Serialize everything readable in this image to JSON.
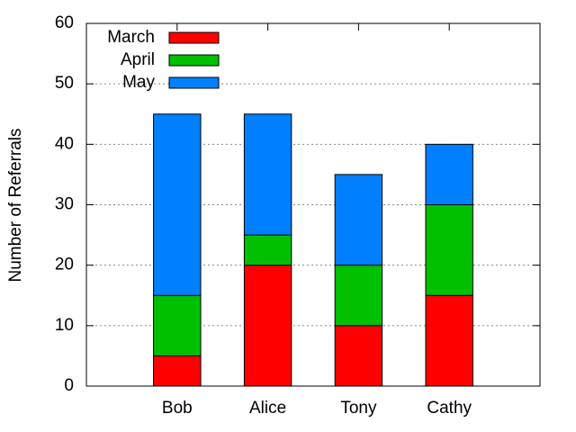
{
  "chart_data": {
    "type": "stacked_bar",
    "y_label": "Number of Referrals",
    "categories": [
      "Bob",
      "Alice",
      "Tony",
      "Cathy"
    ],
    "series": [
      {
        "name": "March",
        "color": "#ff0000",
        "values": [
          5,
          20,
          10,
          15
        ]
      },
      {
        "name": "April",
        "color": "#00c000",
        "values": [
          10,
          5,
          10,
          15
        ]
      },
      {
        "name": "May",
        "color": "#0080ff",
        "values": [
          30,
          20,
          15,
          10
        ]
      }
    ],
    "ylim": [
      0,
      60
    ],
    "yticks": [
      0,
      10,
      20,
      30,
      40,
      50,
      60
    ],
    "grid": true,
    "legend": "top-left"
  }
}
